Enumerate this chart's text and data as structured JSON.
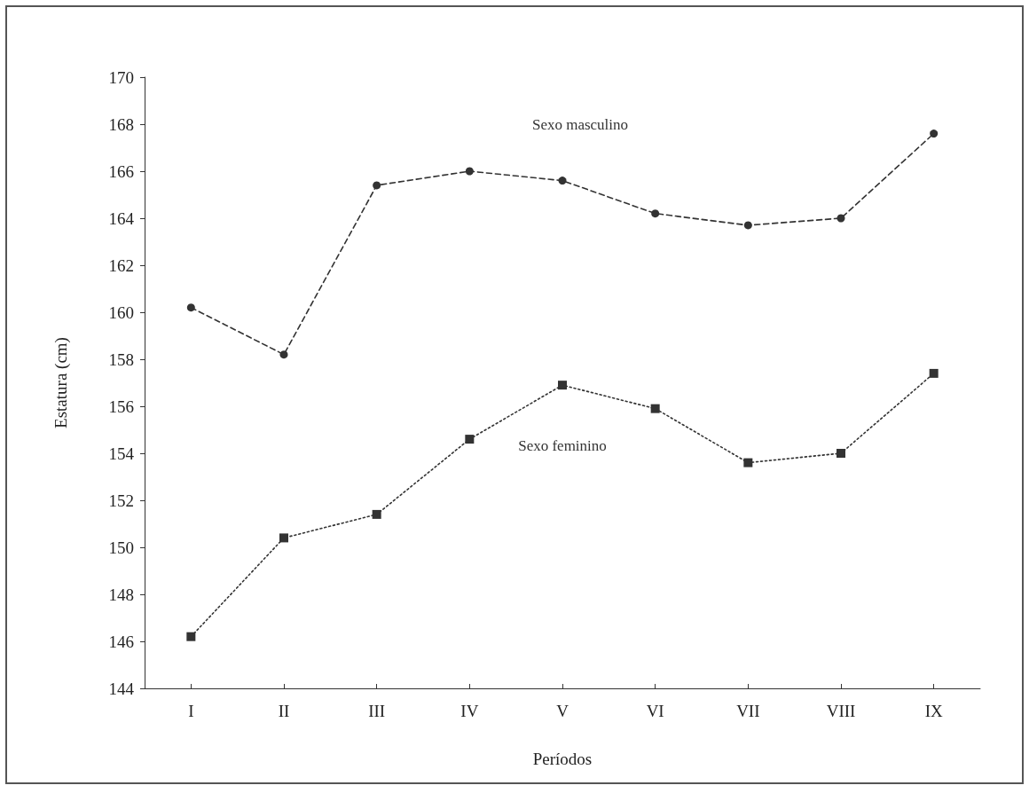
{
  "chart_data": {
    "type": "line",
    "xlabel": "Períodos",
    "ylabel": "Estatura (cm)",
    "categories": [
      "I",
      "II",
      "III",
      "IV",
      "V",
      "VI",
      "VII",
      "VIII",
      "IX"
    ],
    "series": [
      {
        "name": "Sexo masculino",
        "color": "#333333",
        "marker": "circle",
        "line_style": "dashed",
        "values": [
          160.2,
          158.2,
          165.4,
          166.0,
          165.6,
          164.2,
          163.7,
          164.0,
          167.6
        ]
      },
      {
        "name": "Sexo feminino",
        "color": "#333333",
        "marker": "square",
        "line_style": "dotted",
        "values": [
          146.2,
          150.4,
          151.4,
          154.6,
          156.9,
          155.9,
          153.6,
          154.0,
          157.4
        ]
      }
    ],
    "ylim": [
      144,
      170
    ],
    "yticks": [
      144,
      146,
      148,
      150,
      152,
      154,
      156,
      158,
      160,
      162,
      164,
      166,
      168,
      170
    ],
    "grid": false,
    "legend": false
  }
}
